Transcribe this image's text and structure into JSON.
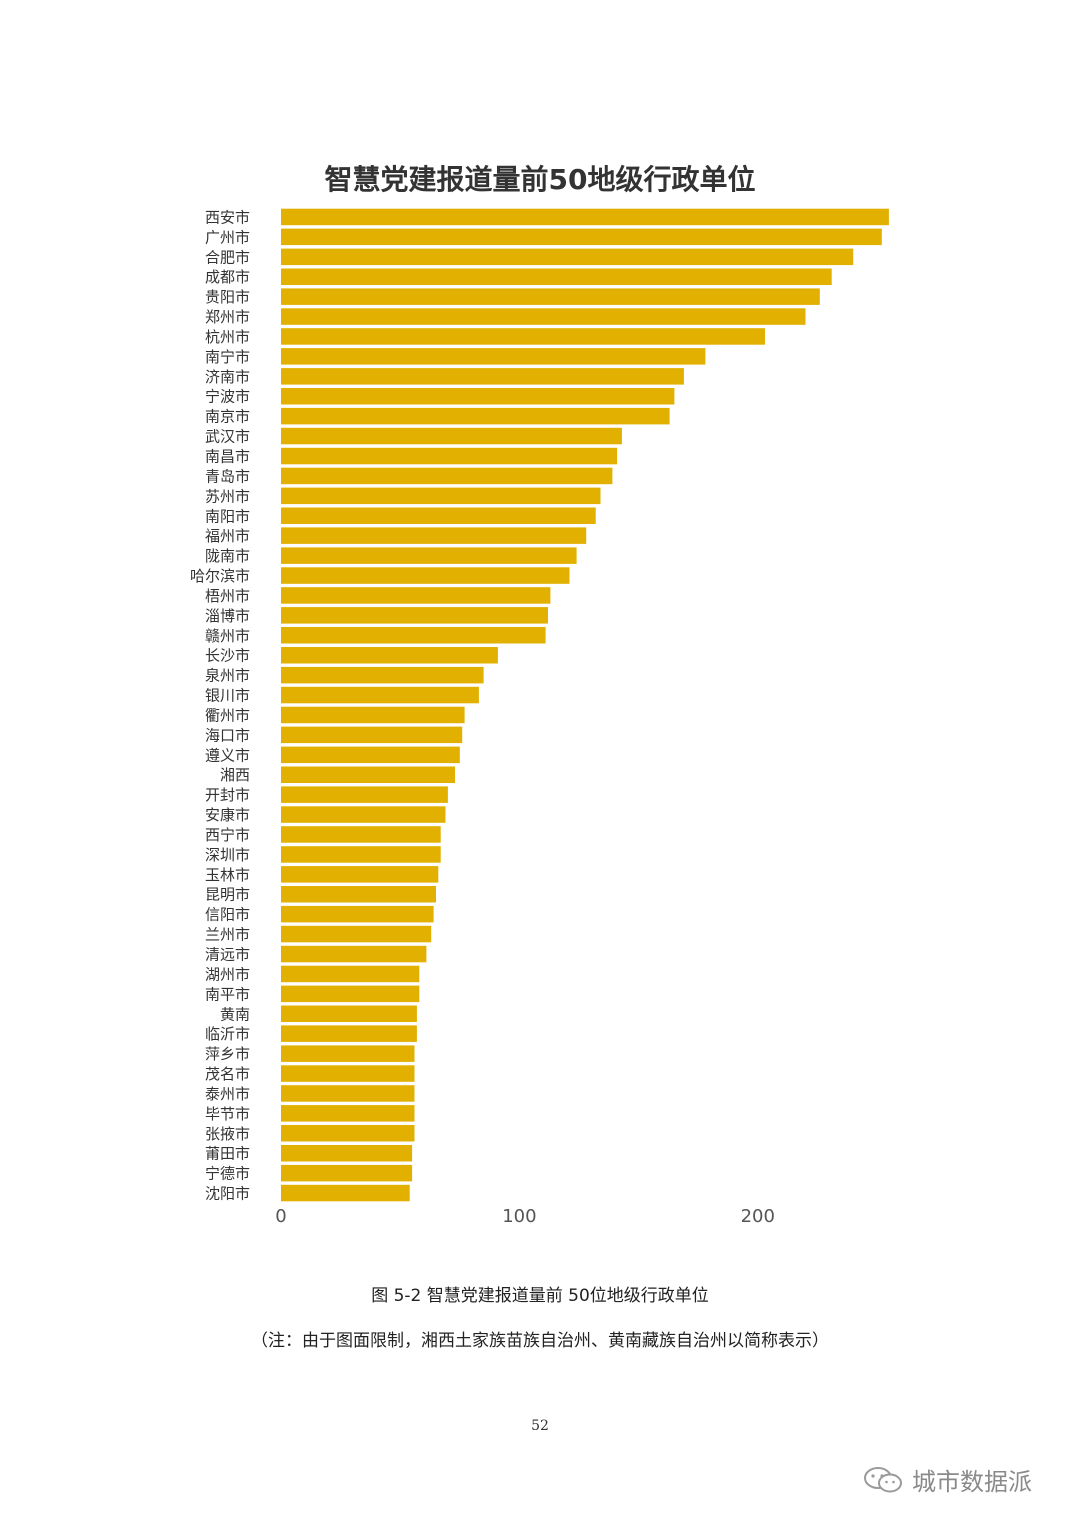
{
  "chart_data": {
    "type": "bar",
    "orientation": "horizontal",
    "title": "智慧党建报道量前50地级行政单位",
    "categories": [
      "西安市",
      "广州市",
      "合肥市",
      "成都市",
      "贵阳市",
      "郑州市",
      "杭州市",
      "南宁市",
      "济南市",
      "宁波市",
      "南京市",
      "武汉市",
      "南昌市",
      "青岛市",
      "苏州市",
      "南阳市",
      "福州市",
      "陇南市",
      "哈尔滨市",
      "梧州市",
      "淄博市",
      "赣州市",
      "长沙市",
      "泉州市",
      "银川市",
      "衢州市",
      "海口市",
      "遵义市",
      "湘西",
      "开封市",
      "安康市",
      "西宁市",
      "深圳市",
      "玉林市",
      "昆明市",
      "信阳市",
      "兰州市",
      "清远市",
      "湖州市",
      "南平市",
      "黄南",
      "临沂市",
      "萍乡市",
      "茂名市",
      "泰州市",
      "毕节市",
      "张掖市",
      "莆田市",
      "宁德市",
      "沈阳市"
    ],
    "values": [
      255,
      252,
      240,
      231,
      226,
      220,
      203,
      178,
      169,
      165,
      163,
      143,
      141,
      139,
      134,
      132,
      128,
      124,
      121,
      113,
      112,
      111,
      91,
      85,
      83,
      77,
      76,
      75,
      73,
      70,
      69,
      67,
      67,
      66,
      65,
      64,
      63,
      61,
      58,
      58,
      57,
      57,
      56,
      56,
      56,
      56,
      56,
      55,
      55,
      54
    ],
    "xticks": [
      "0",
      "100",
      "200"
    ],
    "xlim": [
      0,
      265
    ],
    "bar_color": "#e1b000",
    "grid": false,
    "legend": "none"
  },
  "caption": "图 5-2 智慧党建报道量前 50位地级行政单位",
  "note": "（注：由于图面限制，湘西土家族苗族自治州、黄南藏族自治州以简称表示）",
  "page_number": "52",
  "watermark": {
    "text": "城市数据派",
    "icon": "wechat-icon"
  }
}
